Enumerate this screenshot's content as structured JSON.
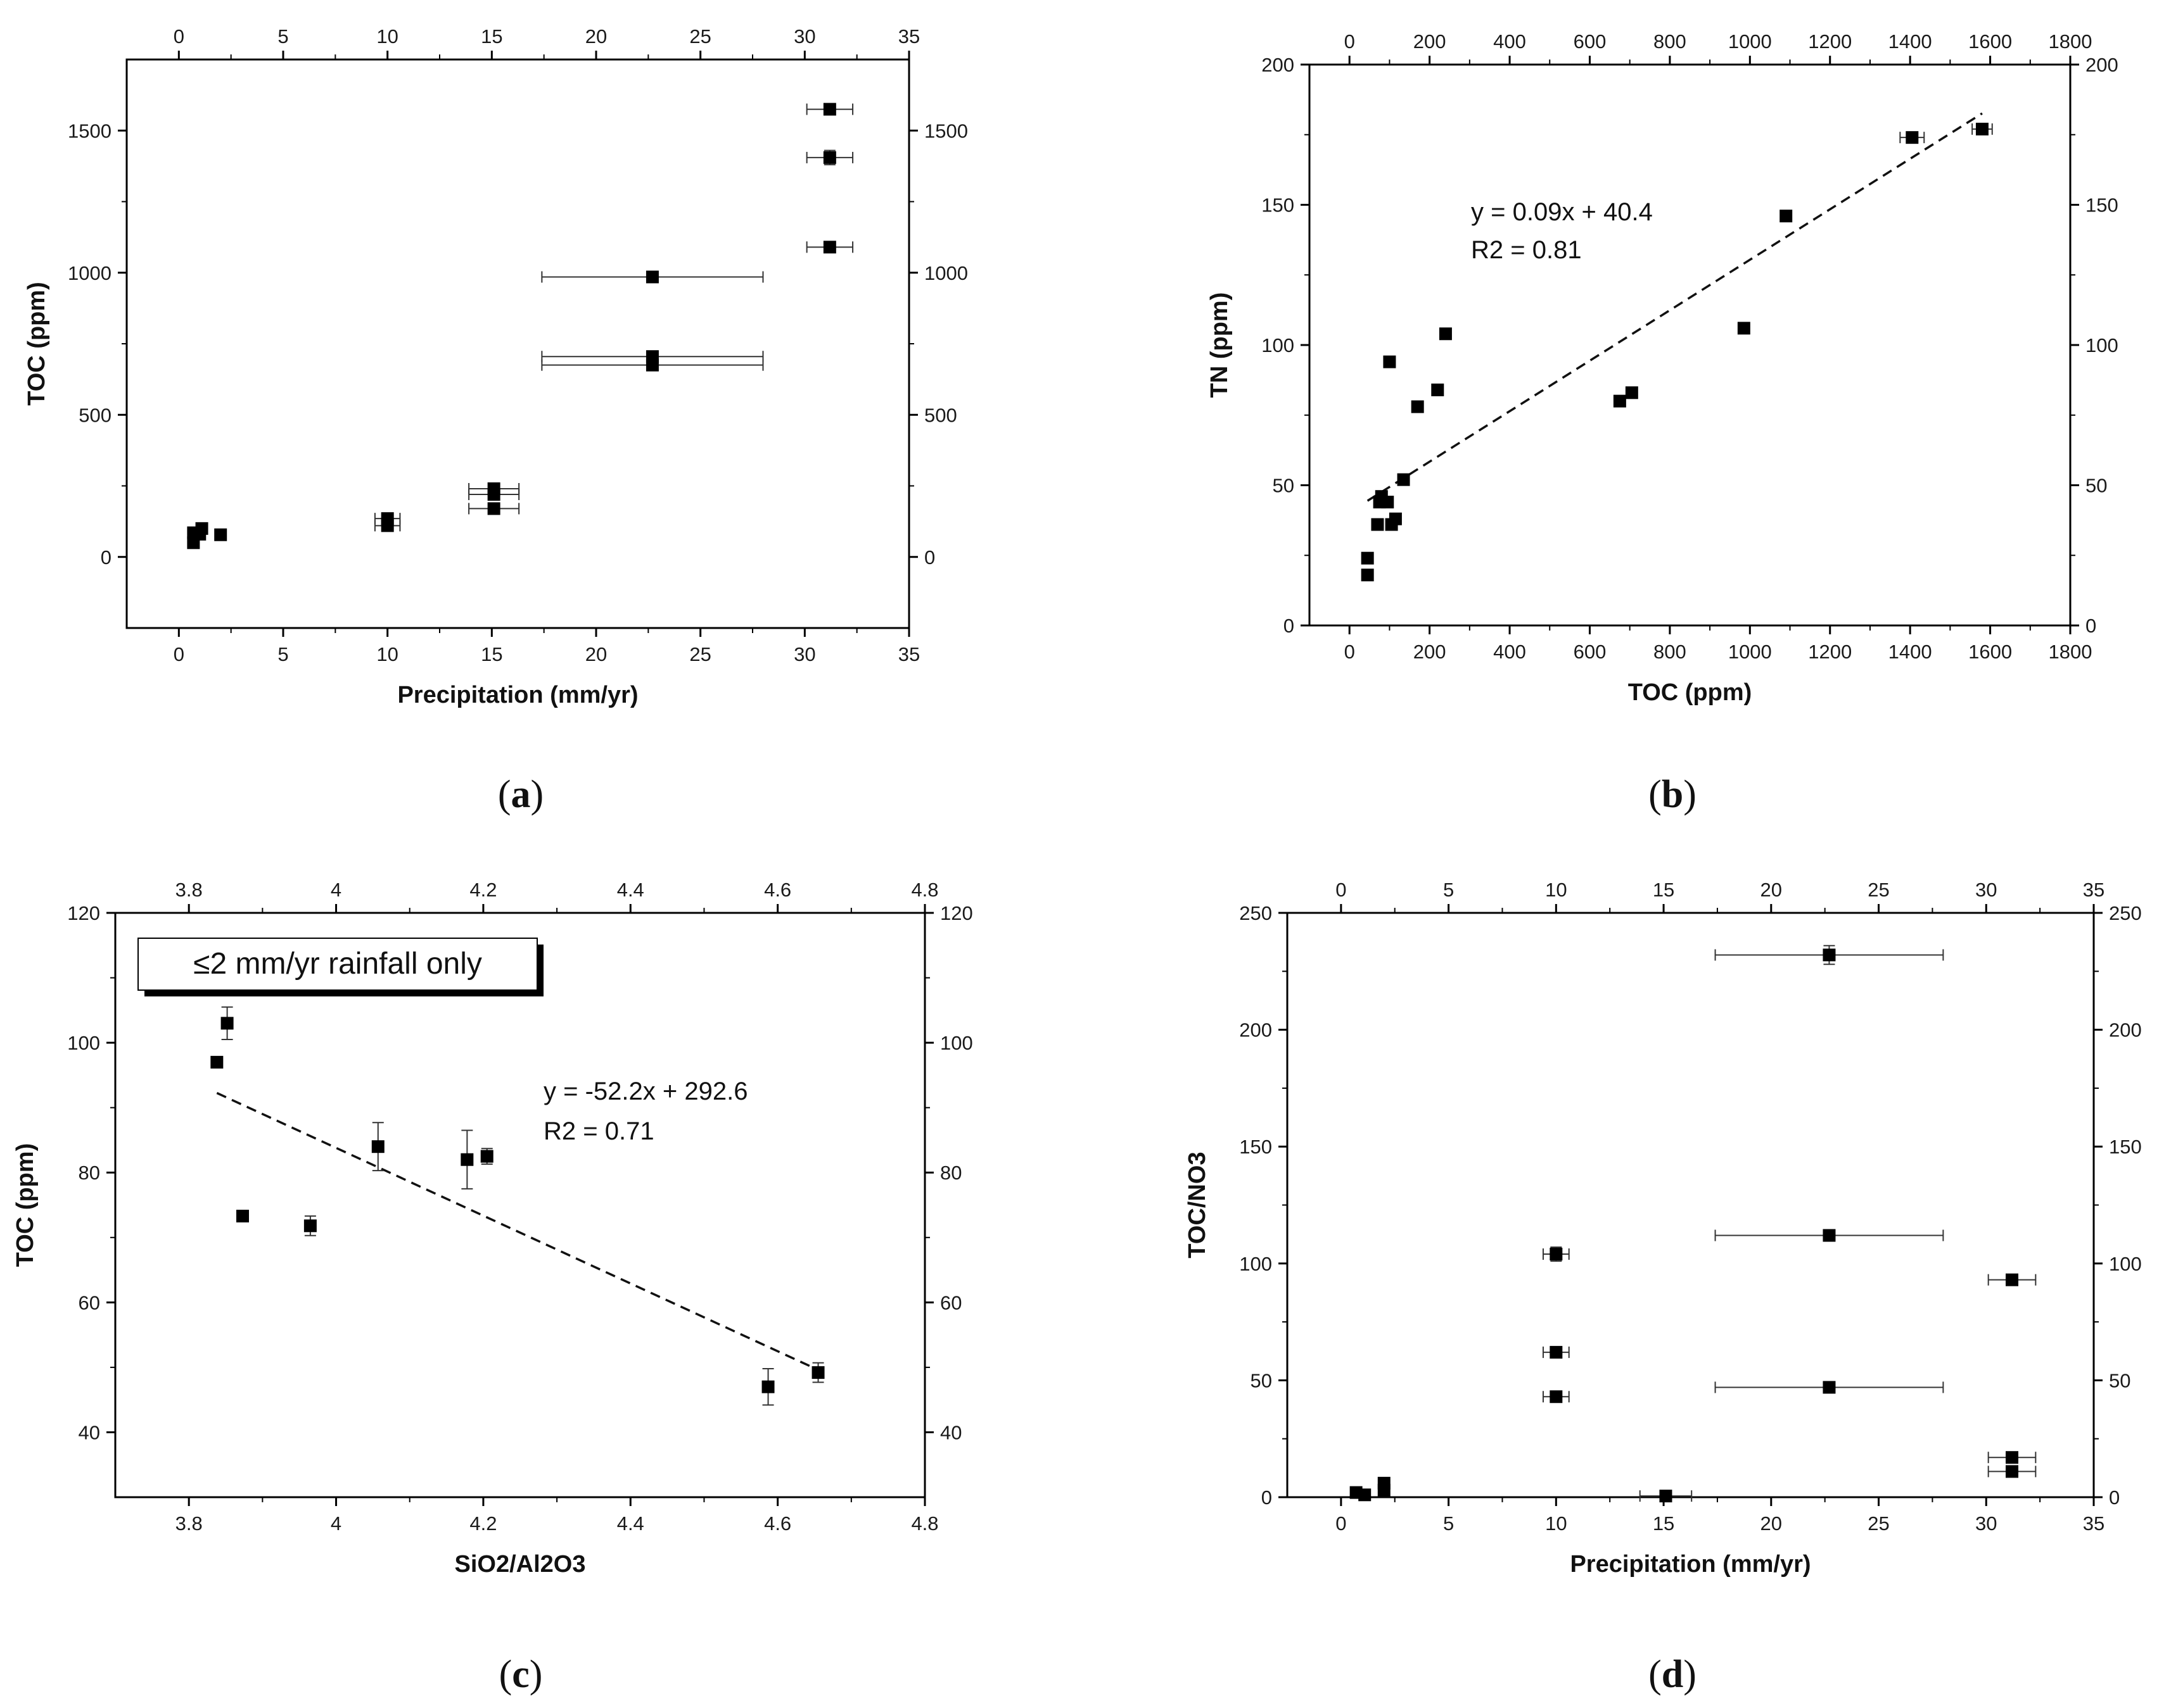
{
  "chart_data": [
    {
      "id": "a",
      "type": "scatter",
      "caption": "a",
      "xlabel": "Precipitation (mm/yr)",
      "ylabel": "TOC (ppm)",
      "xlim": [
        -2.5,
        35
      ],
      "ylim": [
        -250,
        1750
      ],
      "xticks": [
        0,
        5,
        10,
        15,
        20,
        25,
        30,
        35
      ],
      "yticks": [
        0,
        500,
        1000,
        1500
      ],
      "points": [
        {
          "x": 0.7,
          "y": 50
        },
        {
          "x": 0.7,
          "y": 85
        },
        {
          "x": 1.1,
          "y": 100
        },
        {
          "x": 1.0,
          "y": 80
        },
        {
          "x": 2.0,
          "y": 78
        },
        {
          "x": 10.0,
          "y": 110,
          "xerr": 0.6,
          "yerr": 12
        },
        {
          "x": 10.0,
          "y": 135,
          "xerr": 0.6,
          "yerr": 12
        },
        {
          "x": 15.1,
          "y": 170,
          "xerr": 1.2
        },
        {
          "x": 15.1,
          "y": 220,
          "xerr": 1.2
        },
        {
          "x": 15.1,
          "y": 240,
          "xerr": 1.2
        },
        {
          "x": 22.7,
          "y": 985,
          "xerr": 5.3
        },
        {
          "x": 22.7,
          "y": 705,
          "xerr": 5.3
        },
        {
          "x": 22.7,
          "y": 675,
          "xerr": 5.3
        },
        {
          "x": 31.2,
          "y": 1575,
          "xerr": 1.1
        },
        {
          "x": 31.2,
          "y": 1405,
          "xerr": 1.1,
          "yerr": 25
        },
        {
          "x": 31.2,
          "y": 1090,
          "xerr": 1.1
        }
      ]
    },
    {
      "id": "b",
      "type": "scatter",
      "caption": "b",
      "xlabel": "TOC (ppm)",
      "ylabel": "TN (ppm)",
      "xlim": [
        -100,
        1800
      ],
      "ylim": [
        0,
        200
      ],
      "xticks": [
        0,
        200,
        400,
        600,
        800,
        1000,
        1200,
        1400,
        1600,
        1800
      ],
      "yticks": [
        0,
        50,
        100,
        150,
        200
      ],
      "equation": "y = 0.09x + 40.4",
      "r2": "R2 = 0.81",
      "fit": {
        "slope": 0.09,
        "intercept": 40.4,
        "x_range": [
          45,
          1580
        ]
      },
      "points": [
        {
          "x": 45,
          "y": 24
        },
        {
          "x": 45,
          "y": 18
        },
        {
          "x": 70,
          "y": 36
        },
        {
          "x": 75,
          "y": 44
        },
        {
          "x": 80,
          "y": 46
        },
        {
          "x": 95,
          "y": 44
        },
        {
          "x": 100,
          "y": 94
        },
        {
          "x": 105,
          "y": 36
        },
        {
          "x": 115,
          "y": 38
        },
        {
          "x": 135,
          "y": 52
        },
        {
          "x": 170,
          "y": 78
        },
        {
          "x": 220,
          "y": 84
        },
        {
          "x": 240,
          "y": 104
        },
        {
          "x": 675,
          "y": 80
        },
        {
          "x": 705,
          "y": 83
        },
        {
          "x": 985,
          "y": 106
        },
        {
          "x": 1090,
          "y": 146
        },
        {
          "x": 1405,
          "y": 174,
          "xerr": 30
        },
        {
          "x": 1580,
          "y": 177,
          "xerr": 25
        }
      ]
    },
    {
      "id": "c",
      "type": "scatter",
      "caption": "c",
      "xlabel": "SiO2/Al2O3",
      "ylabel": "TOC (ppm)",
      "xlim": [
        3.7,
        4.8
      ],
      "ylim": [
        30,
        120
      ],
      "xticks": [
        3.8,
        4.0,
        4.2,
        4.4,
        4.6,
        4.8
      ],
      "yticks": [
        40,
        60,
        80,
        100,
        120
      ],
      "annotation": "≤2 mm/yr rainfall only",
      "equation": "y = -52.2x + 292.6",
      "r2": "R2 = 0.71",
      "fit": {
        "slope": -52.2,
        "intercept": 292.6,
        "x_range": [
          3.838,
          4.655
        ]
      },
      "points": [
        {
          "x": 3.838,
          "y": 97
        },
        {
          "x": 3.852,
          "y": 103,
          "yerr": 2.5
        },
        {
          "x": 3.873,
          "y": 73.3
        },
        {
          "x": 3.965,
          "y": 71.8,
          "yerr": 1.5
        },
        {
          "x": 4.057,
          "y": 84,
          "yerr": 3.7
        },
        {
          "x": 4.178,
          "y": 82,
          "yerr": 4.5
        },
        {
          "x": 4.205,
          "y": 82.5,
          "yerr": 1.2
        },
        {
          "x": 4.587,
          "y": 47,
          "yerr": 2.8
        },
        {
          "x": 4.655,
          "y": 49.2,
          "yerr": 1.5
        }
      ]
    },
    {
      "id": "d",
      "type": "scatter",
      "caption": "d",
      "xlabel": "Precipitation (mm/yr)",
      "ylabel": "TOC/NO3",
      "xlim": [
        -2.5,
        35
      ],
      "ylim": [
        0,
        250
      ],
      "xticks": [
        0,
        5,
        10,
        15,
        20,
        25,
        30,
        35
      ],
      "yticks": [
        0,
        50,
        100,
        150,
        200,
        250
      ],
      "points": [
        {
          "x": 0.7,
          "y": 2
        },
        {
          "x": 1.1,
          "y": 1
        },
        {
          "x": 2.0,
          "y": 6
        },
        {
          "x": 2.0,
          "y": 3
        },
        {
          "x": 10.0,
          "y": 104,
          "xerr": 0.6,
          "yerr": 3
        },
        {
          "x": 10.0,
          "y": 62,
          "xerr": 0.6
        },
        {
          "x": 10.0,
          "y": 43,
          "xerr": 0.6
        },
        {
          "x": 15.1,
          "y": 0.5,
          "xerr": 1.2
        },
        {
          "x": 22.7,
          "y": 232,
          "xerr": 5.3,
          "yerr": 4
        },
        {
          "x": 22.7,
          "y": 112,
          "xerr": 5.3
        },
        {
          "x": 22.7,
          "y": 47,
          "xerr": 5.3
        },
        {
          "x": 31.2,
          "y": 93,
          "xerr": 1.1
        },
        {
          "x": 31.2,
          "y": 17,
          "xerr": 1.1
        },
        {
          "x": 31.2,
          "y": 11,
          "xerr": 1.1
        }
      ]
    }
  ]
}
